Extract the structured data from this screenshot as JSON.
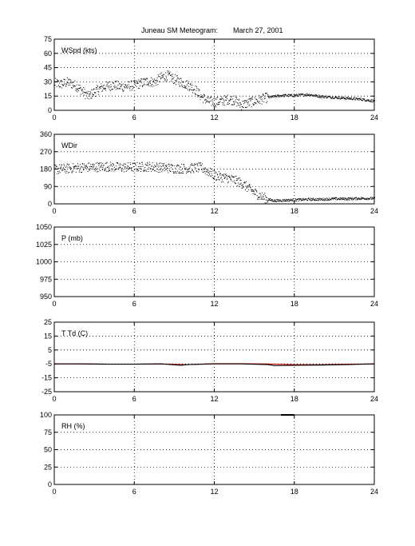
{
  "title": "Juneau SM Meteogram:",
  "date": "March 27, 2001",
  "colors": {
    "axis": "#000000",
    "grid": "#000000",
    "data": "#000000",
    "temperature": "#cc0000",
    "dewpoint": "#000000"
  },
  "chart_data": [
    {
      "type": "scatter",
      "label": "WSpd (kts)",
      "x_ticks": [
        "0",
        "6",
        "12",
        "18",
        "24"
      ],
      "y_ticks": [
        "0",
        "15",
        "30",
        "45",
        "60",
        "75"
      ],
      "xlim": [
        0,
        24
      ],
      "ylim": [
        0,
        75
      ],
      "grid": true,
      "series": [
        {
          "x": [
            0,
            0.5,
            1,
            1.5,
            2,
            2.5,
            3,
            3.5,
            4,
            4.5,
            5,
            5.5,
            6,
            6.5,
            7,
            7.5,
            8,
            8.5,
            9,
            9.5,
            10,
            10.5,
            11,
            11.5,
            12,
            12.5,
            13,
            13.5,
            14,
            14.5,
            15,
            15.5,
            16,
            17,
            18,
            19,
            20,
            21,
            22,
            23,
            24
          ],
          "values": [
            29,
            28,
            30,
            27,
            22,
            15,
            20,
            24,
            26,
            27,
            25,
            26,
            27,
            29,
            31,
            30,
            35,
            37,
            33,
            30,
            27,
            23,
            15,
            10,
            9,
            10,
            12,
            11,
            6,
            8,
            10,
            12,
            14,
            16,
            16,
            17,
            15,
            14,
            13,
            12,
            10
          ]
        }
      ]
    },
    {
      "type": "scatter",
      "label": "WDir",
      "x_ticks": [
        "0",
        "6",
        "12",
        "18",
        "24"
      ],
      "y_ticks": [
        "0",
        "90",
        "180",
        "270",
        "360"
      ],
      "xlim": [
        0,
        24
      ],
      "ylim": [
        0,
        360
      ],
      "grid": true,
      "series": [
        {
          "x": [
            0,
            1,
            2,
            3,
            4,
            5,
            6,
            7,
            8,
            9,
            10,
            11,
            11.5,
            12,
            12.5,
            13,
            13.5,
            14,
            14.5,
            15,
            15.5,
            16,
            16.5,
            17,
            18,
            19,
            20,
            21,
            22,
            23,
            24
          ],
          "values": [
            180,
            185,
            190,
            192,
            195,
            190,
            192,
            195,
            190,
            185,
            185,
            190,
            170,
            150,
            140,
            135,
            125,
            110,
            85,
            60,
            40,
            25,
            18,
            20,
            22,
            25,
            25,
            28,
            28,
            30,
            30
          ]
        }
      ]
    },
    {
      "type": "line",
      "label": "P (mb)",
      "x_ticks": [
        "0",
        "6",
        "12",
        "18",
        "24"
      ],
      "y_ticks": [
        "950",
        "975",
        "1000",
        "1025",
        "1050"
      ],
      "xlim": [
        0,
        24
      ],
      "ylim": [
        950,
        1050
      ],
      "grid": true,
      "series": []
    },
    {
      "type": "line",
      "label": "T Td (C)",
      "x_ticks": [
        "0",
        "6",
        "12",
        "18",
        "24"
      ],
      "y_ticks": [
        "-25",
        "-15",
        "-5",
        "5",
        "15",
        "25"
      ],
      "xlim": [
        0,
        24
      ],
      "ylim": [
        -25,
        25
      ],
      "grid": true,
      "series": [
        {
          "x": [
            0,
            2,
            4,
            6,
            8,
            10,
            12,
            14,
            16,
            18,
            20,
            22,
            24
          ],
          "values": [
            -5,
            -5,
            -5.2,
            -5.2,
            -5,
            -5.5,
            -4.8,
            -4.8,
            -5,
            -5.5,
            -5.5,
            -5.2,
            -5
          ]
        },
        {
          "x": [
            0,
            2,
            4,
            6,
            8,
            9.5,
            10,
            12,
            13.5,
            14,
            16,
            16.5,
            18,
            20,
            22,
            24
          ],
          "values": [
            -5,
            -5,
            -5.2,
            -5.2,
            -5,
            -6,
            -5.5,
            -5,
            -5,
            -5,
            -5.5,
            -6.2,
            -6,
            -5.8,
            -5.5,
            -5
          ]
        }
      ]
    },
    {
      "type": "line",
      "label": "RH (%)",
      "x_ticks": [
        "0",
        "6",
        "12",
        "18",
        "24"
      ],
      "y_ticks": [
        "0",
        "25",
        "50",
        "75",
        "100"
      ],
      "xlim": [
        0,
        24
      ],
      "ylim": [
        0,
        100
      ],
      "grid": true,
      "series": [
        {
          "x": [
            17,
            18
          ],
          "values": [
            100,
            100
          ]
        }
      ]
    }
  ]
}
